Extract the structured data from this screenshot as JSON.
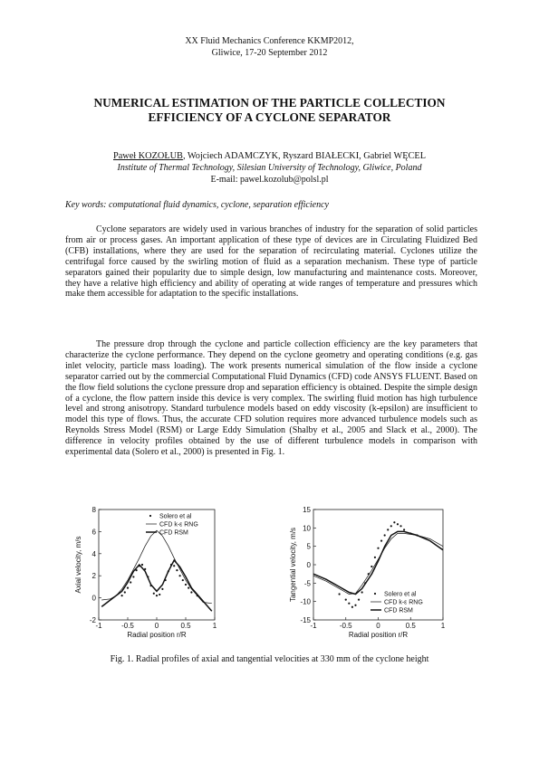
{
  "header": {
    "conference_line1": "XX Fluid Mechanics Conference KKMP2012,",
    "conference_line2": "Gliwice, 17-20 September 2012"
  },
  "paper": {
    "title_line1": "NUMERICAL ESTIMATION OF THE PARTICLE COLLECTION",
    "title_line2": "EFFICIENCY OF A CYCLONE SEPARATOR",
    "first_author": "Paweł KOZOŁUB",
    "other_authors": ", Wojciech ADAMCZYK, Ryszard BIAŁECKI, Gabriel WĘCEL",
    "affiliation": "Institute of Thermal Technology, Silesian University of Technology, Gliwice, Poland",
    "email": "E-mail: pawel.kozolub@polsl.pl",
    "keywords": "Key words: computational fluid dynamics, cyclone, separation efficiency",
    "paragraph1": "Cyclone separators are widely used in various branches of industry for the separation of solid particles from air or process gases. An important application of these type of  devices are in Circulating Fluidized Bed (CFB) installations, where they are used for the separation of recirculating material. Cyclones utilize the centrifugal force caused by the swirling motion of fluid as a separation mechanism. These type of particle separators gained their popularity due to simple design, low manufacturing and maintenance costs. Moreover, they have a relative high efficiency and ability of operating at wide ranges of temperature and pressures which make them accessible for adaptation to the specific installations.",
    "paragraph2": "The pressure drop through the cyclone and particle collection efficiency are the key parameters that characterize the cyclone performance. They depend on the cyclone geometry and operating conditions (e.g. gas inlet velocity, particle mass loading). The work presents numerical simulation of the flow inside a cyclone separator carried out by the commercial Computational Fluid Dynamics (CFD) code ANSYS FLUENT. Based on the flow field solutions the cyclone pressure drop and separation efficiency is obtained. Despite the simple design of a cyclone, the flow pattern inside this device is very complex. The swirling fluid motion has high turbulence level and strong anisotropy. Standard turbulence models based on eddy viscosity (k-epsilon) are insufficient to model this type of flows. Thus, the accurate CFD solution requires more advanced turbulence models such as Reynolds Stress Model (RSM) or Large Eddy Simulation (Shalby et al., 2005 and Slack et al., 2000). The difference in velocity profiles obtained by the use of different turbulence models in comparison with experimental data (Solero et al., 2000) is presented in Fig. 1.",
    "figure_caption": "Fig. 1. Radial profiles of axial and tangential velocities at 330 mm of the cyclone height"
  },
  "chart_data": [
    {
      "type": "line",
      "xlabel": "Radial position r/R",
      "ylabel": "Axial velocity, m/s",
      "xlim": [
        -1,
        1
      ],
      "ylim": [
        -2,
        8
      ],
      "xticks": [
        "-1",
        "-0.5",
        "0",
        "0.5",
        "1"
      ],
      "yticks": [
        "-2",
        "0",
        "2",
        "4",
        "6",
        "8"
      ],
      "legend_position": "top-right",
      "series": [
        {
          "name": "Solero et al",
          "style": "points",
          "x": [
            -0.6,
            -0.55,
            -0.5,
            -0.45,
            -0.4,
            -0.35,
            -0.3,
            -0.25,
            -0.2,
            -0.15,
            -0.1,
            -0.05,
            0.0,
            0.05,
            0.1,
            0.15,
            0.2,
            0.25,
            0.3,
            0.35,
            0.4,
            0.45,
            0.5,
            0.55,
            0.6,
            0.7
          ],
          "y": [
            0.2,
            0.5,
            0.9,
            1.4,
            1.9,
            2.5,
            2.9,
            3.0,
            2.6,
            1.9,
            1.1,
            0.4,
            0.2,
            0.3,
            0.8,
            1.6,
            2.4,
            3.0,
            2.9,
            2.5,
            2.0,
            1.6,
            1.2,
            0.9,
            0.5,
            0.2
          ]
        },
        {
          "name": "CFD k-ε RNG",
          "style": "thin",
          "x": [
            -0.95,
            -0.8,
            -0.7,
            -0.6,
            -0.5,
            -0.4,
            -0.3,
            -0.2,
            -0.1,
            0.0,
            0.1,
            0.2,
            0.3,
            0.4,
            0.5,
            0.6,
            0.7,
            0.8,
            0.95
          ],
          "y": [
            -0.2,
            -0.1,
            0.2,
            0.8,
            1.6,
            2.6,
            3.6,
            4.7,
            5.6,
            6.1,
            5.6,
            4.7,
            3.6,
            2.6,
            1.6,
            0.8,
            0.2,
            -0.4,
            -0.5
          ]
        },
        {
          "name": "CFD RSM",
          "style": "thick",
          "x": [
            -0.95,
            -0.8,
            -0.6,
            -0.5,
            -0.4,
            -0.3,
            -0.2,
            -0.1,
            0.0,
            0.1,
            0.2,
            0.3,
            0.4,
            0.5,
            0.6,
            0.8,
            0.95
          ],
          "y": [
            -0.8,
            -0.2,
            0.6,
            1.4,
            2.4,
            3.0,
            2.4,
            1.2,
            0.6,
            1.2,
            2.4,
            3.4,
            2.8,
            1.9,
            0.9,
            -0.3,
            -1.2
          ]
        }
      ]
    },
    {
      "type": "line",
      "xlabel": "Radial position r/R",
      "ylabel": "Tangential velocity, m/s",
      "xlim": [
        -1,
        1
      ],
      "ylim": [
        -15,
        15
      ],
      "xticks": [
        "-1",
        "-0.5",
        "0",
        "0.5",
        "1"
      ],
      "yticks": [
        "-15",
        "-10",
        "-5",
        "0",
        "5",
        "10",
        "15"
      ],
      "legend_position": "bottom-right",
      "series": [
        {
          "name": "Solero et al",
          "style": "points",
          "x": [
            -0.6,
            -0.5,
            -0.45,
            -0.4,
            -0.35,
            -0.3,
            -0.25,
            -0.2,
            -0.15,
            -0.1,
            -0.05,
            0.0,
            0.05,
            0.1,
            0.15,
            0.2,
            0.25,
            0.3,
            0.35,
            0.4,
            0.5,
            0.6
          ],
          "y": [
            -8.0,
            -9.5,
            -10.5,
            -11.5,
            -11.0,
            -9.5,
            -7.5,
            -5.0,
            -2.5,
            -0.5,
            2.0,
            4.5,
            6.5,
            8.0,
            9.5,
            10.5,
            11.5,
            11.0,
            10.5,
            9.5,
            8.5,
            8.0
          ]
        },
        {
          "name": "CFD k-ε RNG",
          "style": "thin",
          "x": [
            -1.0,
            -0.8,
            -0.6,
            -0.45,
            -0.35,
            -0.25,
            -0.1,
            0.0,
            0.1,
            0.2,
            0.3,
            0.4,
            0.6,
            0.8,
            1.0
          ],
          "y": [
            -3.0,
            -4.5,
            -6.5,
            -8.0,
            -7.8,
            -5.5,
            -1.5,
            1.5,
            4.5,
            7.0,
            8.5,
            8.5,
            8.0,
            7.0,
            5.0
          ]
        },
        {
          "name": "CFD RSM",
          "style": "thick",
          "x": [
            -1.0,
            -0.8,
            -0.6,
            -0.45,
            -0.35,
            -0.25,
            -0.1,
            0.0,
            0.1,
            0.2,
            0.3,
            0.4,
            0.6,
            0.8,
            1.0
          ],
          "y": [
            -2.5,
            -4.0,
            -6.0,
            -7.5,
            -8.0,
            -6.5,
            -2.5,
            1.0,
            5.0,
            8.0,
            9.0,
            9.0,
            8.0,
            6.5,
            4.0
          ]
        }
      ]
    }
  ]
}
